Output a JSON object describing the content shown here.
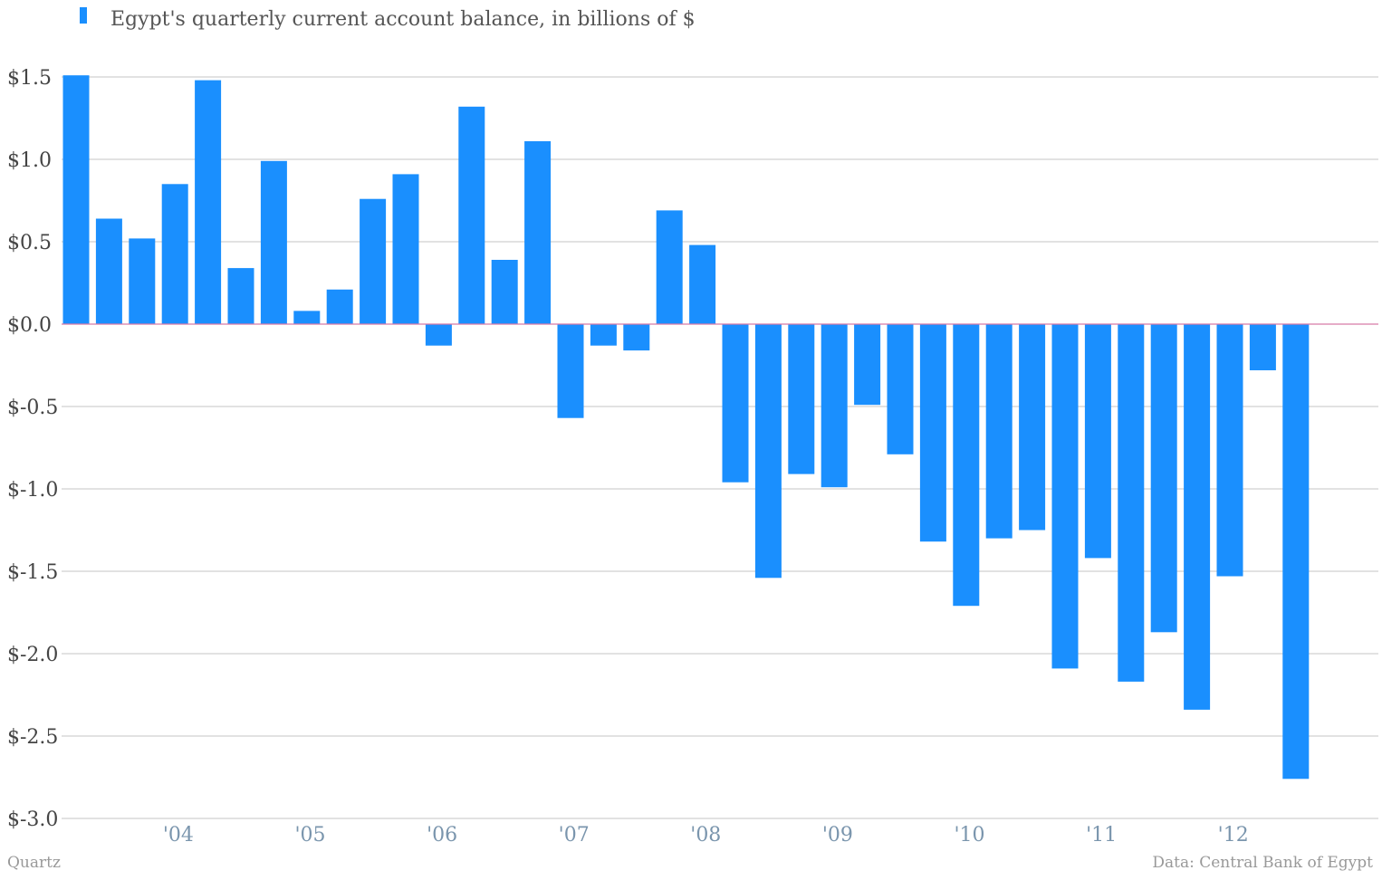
{
  "chart_data": {
    "type": "bar",
    "legend": "Egypt's quarterly current account balance, in billions of $",
    "legend_placement": "top-left",
    "color": "#1a8ffe",
    "zero_line_color": "#d87aa8",
    "grid": true,
    "ylim": [
      -3.0,
      1.5
    ],
    "yticks": [
      1.5,
      1.0,
      0.5,
      0.0,
      -0.5,
      -1.0,
      -1.5,
      -2.0,
      -2.5,
      -3.0
    ],
    "ytick_labels": [
      "$1.5",
      "$1.0",
      "$0.5",
      "$0.0",
      "$-0.5",
      "$-1.0",
      "$-1.5",
      "$-2.0",
      "$-2.5",
      "$-3.0"
    ],
    "xtick_labels": [
      "'04",
      "'05",
      "'06",
      "'07",
      "'08",
      "'09",
      "'10",
      "'11",
      "'12"
    ],
    "xtick_positions_in_bars": [
      3.5,
      7.5,
      11.5,
      15.5,
      19.5,
      23.5,
      27.5,
      31.5,
      35.5
    ],
    "values": [
      1.51,
      0.64,
      0.52,
      0.85,
      1.48,
      0.34,
      0.99,
      0.08,
      0.21,
      0.76,
      0.91,
      -0.13,
      1.32,
      0.39,
      1.11,
      -0.57,
      -0.13,
      -0.16,
      0.69,
      0.48,
      -0.96,
      -1.54,
      -0.91,
      -0.99,
      -0.49,
      -0.79,
      -1.32,
      -1.71,
      -1.3,
      -1.25,
      -2.09,
      -1.42,
      -2.17,
      -1.87,
      -2.34,
      -1.53,
      -0.28,
      -2.76
    ]
  },
  "footer": {
    "left": "Quartz",
    "right": "Data: Central Bank of Egypt"
  }
}
